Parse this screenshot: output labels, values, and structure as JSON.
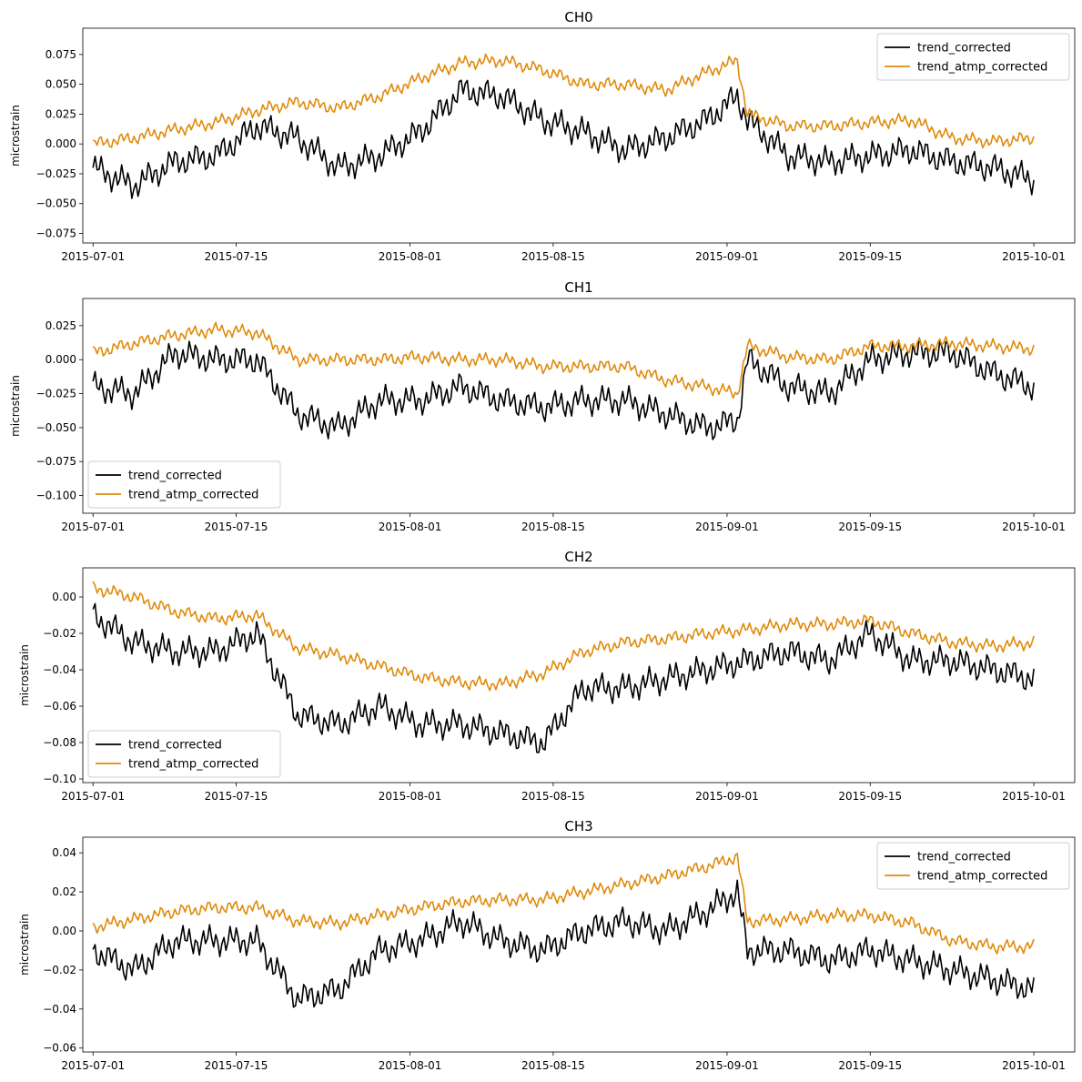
{
  "figure": {
    "background": "#ffffff"
  },
  "colors": {
    "trend_corrected": "#000000",
    "trend_atmp_corrected": "#e08a0b",
    "axes": "#000000"
  },
  "x_tick_labels": [
    "2015-07-01",
    "2015-07-15",
    "2015-08-01",
    "2015-08-15",
    "2015-09-01",
    "2015-09-15",
    "2015-10-01"
  ],
  "chart_data": [
    {
      "type": "line",
      "title": "CH0",
      "xlabel": "",
      "ylabel": "microstrain",
      "x_is_date": true,
      "xlim": [
        "2015-06-30",
        "2015-10-05"
      ],
      "ylim": [
        -0.083,
        0.097
      ],
      "yticks": [
        -0.075,
        -0.05,
        -0.025,
        0.0,
        0.025,
        0.05,
        0.075
      ],
      "ytick_labels": [
        "−0.075",
        "−0.050",
        "−0.025",
        "0.000",
        "0.025",
        "0.050",
        "0.075"
      ],
      "legend": {
        "position": "upper right",
        "entries": [
          "trend_corrected",
          "trend_atmp_corrected"
        ]
      },
      "series": [
        {
          "name": "trend_corrected",
          "color": "#000000",
          "x": [
            "2015-07-01",
            "2015-07-05",
            "2015-07-09",
            "2015-07-13",
            "2015-07-17",
            "2015-07-21",
            "2015-07-25",
            "2015-07-29",
            "2015-08-02",
            "2015-08-06",
            "2015-08-10",
            "2015-08-14",
            "2015-08-18",
            "2015-08-22",
            "2015-08-26",
            "2015-08-30",
            "2015-09-02",
            "2015-09-03",
            "2015-09-07",
            "2015-09-11",
            "2015-09-15",
            "2015-09-19",
            "2015-09-23",
            "2015-09-27",
            "2015-10-01"
          ],
          "y": [
            -0.02,
            -0.035,
            -0.015,
            -0.01,
            0.015,
            0.005,
            -0.02,
            -0.01,
            0.01,
            0.045,
            0.04,
            0.02,
            0.01,
            -0.005,
            0.005,
            0.02,
            0.04,
            0.02,
            -0.01,
            -0.015,
            -0.01,
            -0.005,
            -0.015,
            -0.02,
            -0.03
          ]
        },
        {
          "name": "trend_atmp_corrected",
          "color": "#e08a0b",
          "x": [
            "2015-07-01",
            "2015-07-05",
            "2015-07-09",
            "2015-07-13",
            "2015-07-17",
            "2015-07-21",
            "2015-07-25",
            "2015-07-29",
            "2015-08-02",
            "2015-08-06",
            "2015-08-10",
            "2015-08-14",
            "2015-08-18",
            "2015-08-22",
            "2015-08-26",
            "2015-08-30",
            "2015-09-02",
            "2015-09-03",
            "2015-09-07",
            "2015-09-11",
            "2015-09-15",
            "2015-09-19",
            "2015-09-23",
            "2015-09-27",
            "2015-10-01"
          ],
          "y": [
            0.0,
            0.005,
            0.012,
            0.018,
            0.028,
            0.035,
            0.03,
            0.04,
            0.055,
            0.068,
            0.07,
            0.062,
            0.05,
            0.05,
            0.045,
            0.06,
            0.07,
            0.025,
            0.015,
            0.015,
            0.018,
            0.02,
            0.005,
            0.002,
            0.005
          ]
        }
      ]
    },
    {
      "type": "line",
      "title": "CH1",
      "xlabel": "",
      "ylabel": "microstrain",
      "x_is_date": true,
      "xlim": [
        "2015-06-30",
        "2015-10-05"
      ],
      "ylim": [
        -0.113,
        0.045
      ],
      "yticks": [
        -0.1,
        -0.075,
        -0.05,
        -0.025,
        0.0,
        0.025
      ],
      "ytick_labels": [
        "−0.100",
        "−0.075",
        "−0.050",
        "−0.025",
        "0.000",
        "0.025"
      ],
      "legend": {
        "position": "lower left",
        "entries": [
          "trend_corrected",
          "trend_atmp_corrected"
        ]
      },
      "series": [
        {
          "name": "trend_corrected",
          "color": "#000000",
          "x": [
            "2015-07-01",
            "2015-07-05",
            "2015-07-09",
            "2015-07-13",
            "2015-07-17",
            "2015-07-21",
            "2015-07-25",
            "2015-07-29",
            "2015-08-02",
            "2015-08-06",
            "2015-08-10",
            "2015-08-14",
            "2015-08-18",
            "2015-08-22",
            "2015-08-26",
            "2015-08-30",
            "2015-09-02",
            "2015-09-03",
            "2015-09-07",
            "2015-09-11",
            "2015-09-15",
            "2015-09-19",
            "2015-09-23",
            "2015-09-27",
            "2015-10-01"
          ],
          "y": [
            -0.02,
            -0.025,
            0.005,
            0.0,
            0.0,
            -0.04,
            -0.05,
            -0.03,
            -0.03,
            -0.02,
            -0.03,
            -0.035,
            -0.03,
            -0.03,
            -0.04,
            -0.05,
            -0.045,
            0.0,
            -0.02,
            -0.025,
            0.0,
            0.005,
            0.005,
            -0.01,
            -0.02
          ]
        },
        {
          "name": "trend_atmp_corrected",
          "color": "#e08a0b",
          "x": [
            "2015-07-01",
            "2015-07-05",
            "2015-07-09",
            "2015-07-13",
            "2015-07-17",
            "2015-07-21",
            "2015-07-25",
            "2015-07-29",
            "2015-08-02",
            "2015-08-06",
            "2015-08-10",
            "2015-08-14",
            "2015-08-18",
            "2015-08-22",
            "2015-08-26",
            "2015-08-30",
            "2015-09-02",
            "2015-09-03",
            "2015-09-07",
            "2015-09-11",
            "2015-09-15",
            "2015-09-19",
            "2015-09-23",
            "2015-09-27",
            "2015-10-01"
          ],
          "y": [
            0.005,
            0.012,
            0.018,
            0.022,
            0.02,
            0.0,
            0.0,
            0.0,
            0.002,
            0.0,
            0.0,
            -0.005,
            -0.005,
            -0.005,
            -0.015,
            -0.02,
            -0.025,
            0.01,
            0.002,
            0.0,
            0.01,
            0.01,
            0.012,
            0.01,
            0.008
          ]
        }
      ]
    },
    {
      "type": "line",
      "title": "CH2",
      "xlabel": "",
      "ylabel": "microstrain",
      "x_is_date": true,
      "xlim": [
        "2015-06-30",
        "2015-10-05"
      ],
      "ylim": [
        -0.102,
        0.016
      ],
      "yticks": [
        -0.1,
        -0.08,
        -0.06,
        -0.04,
        -0.02,
        0.0
      ],
      "ytick_labels": [
        "−0.10",
        "−0.08",
        "−0.06",
        "−0.04",
        "−0.02",
        "0.00"
      ],
      "legend": {
        "position": "lower left",
        "entries": [
          "trend_corrected",
          "trend_atmp_corrected"
        ]
      },
      "series": [
        {
          "name": "trend_corrected",
          "color": "#000000",
          "x": [
            "2015-07-01",
            "2015-07-05",
            "2015-07-09",
            "2015-07-13",
            "2015-07-17",
            "2015-07-21",
            "2015-07-25",
            "2015-07-29",
            "2015-08-02",
            "2015-08-06",
            "2015-08-10",
            "2015-08-14",
            "2015-08-18",
            "2015-08-22",
            "2015-08-26",
            "2015-08-30",
            "2015-09-03",
            "2015-09-07",
            "2015-09-11",
            "2015-09-15",
            "2015-09-19",
            "2015-09-23",
            "2015-09-27",
            "2015-10-01"
          ],
          "y": [
            -0.01,
            -0.025,
            -0.03,
            -0.03,
            -0.02,
            -0.065,
            -0.07,
            -0.06,
            -0.07,
            -0.07,
            -0.075,
            -0.08,
            -0.05,
            -0.05,
            -0.045,
            -0.04,
            -0.035,
            -0.03,
            -0.035,
            -0.02,
            -0.035,
            -0.035,
            -0.04,
            -0.045
          ]
        },
        {
          "name": "trend_atmp_corrected",
          "color": "#e08a0b",
          "x": [
            "2015-07-01",
            "2015-07-05",
            "2015-07-09",
            "2015-07-13",
            "2015-07-17",
            "2015-07-21",
            "2015-07-25",
            "2015-07-29",
            "2015-08-02",
            "2015-08-06",
            "2015-08-10",
            "2015-08-14",
            "2015-08-18",
            "2015-08-22",
            "2015-08-26",
            "2015-08-30",
            "2015-09-03",
            "2015-09-07",
            "2015-09-11",
            "2015-09-15",
            "2015-09-19",
            "2015-09-23",
            "2015-09-27",
            "2015-10-01"
          ],
          "y": [
            0.005,
            0.0,
            -0.008,
            -0.012,
            -0.01,
            -0.028,
            -0.032,
            -0.038,
            -0.044,
            -0.047,
            -0.048,
            -0.042,
            -0.03,
            -0.025,
            -0.023,
            -0.02,
            -0.018,
            -0.015,
            -0.015,
            -0.013,
            -0.02,
            -0.025,
            -0.027,
            -0.025
          ]
        }
      ]
    },
    {
      "type": "line",
      "title": "CH3",
      "xlabel": "",
      "ylabel": "microstrain",
      "x_is_date": true,
      "xlim": [
        "2015-06-30",
        "2015-10-05"
      ],
      "ylim": [
        -0.062,
        0.048
      ],
      "yticks": [
        -0.06,
        -0.04,
        -0.02,
        0.0,
        0.02,
        0.04
      ],
      "ytick_labels": [
        "−0.06",
        "−0.04",
        "−0.02",
        "0.00",
        "0.02",
        "0.04"
      ],
      "legend": {
        "position": "upper right",
        "entries": [
          "trend_corrected",
          "trend_atmp_corrected"
        ]
      },
      "series": [
        {
          "name": "trend_corrected",
          "color": "#000000",
          "x": [
            "2015-07-01",
            "2015-07-05",
            "2015-07-09",
            "2015-07-13",
            "2015-07-17",
            "2015-07-21",
            "2015-07-25",
            "2015-07-29",
            "2015-08-02",
            "2015-08-06",
            "2015-08-10",
            "2015-08-14",
            "2015-08-18",
            "2015-08-22",
            "2015-08-26",
            "2015-08-30",
            "2015-09-02",
            "2015-09-03",
            "2015-09-07",
            "2015-09-11",
            "2015-09-15",
            "2015-09-19",
            "2015-09-23",
            "2015-09-27",
            "2015-10-01"
          ],
          "y": [
            -0.01,
            -0.02,
            -0.005,
            -0.005,
            -0.005,
            -0.035,
            -0.03,
            -0.01,
            -0.005,
            0.005,
            -0.005,
            -0.01,
            0.0,
            0.005,
            0.0,
            0.01,
            0.02,
            -0.01,
            -0.01,
            -0.015,
            -0.01,
            -0.015,
            -0.02,
            -0.025,
            -0.03
          ]
        },
        {
          "name": "trend_atmp_corrected",
          "color": "#e08a0b",
          "x": [
            "2015-07-01",
            "2015-07-05",
            "2015-07-09",
            "2015-07-13",
            "2015-07-17",
            "2015-07-21",
            "2015-07-25",
            "2015-07-29",
            "2015-08-02",
            "2015-08-06",
            "2015-08-10",
            "2015-08-14",
            "2015-08-18",
            "2015-08-22",
            "2015-08-26",
            "2015-08-30",
            "2015-09-02",
            "2015-09-03",
            "2015-09-07",
            "2015-09-11",
            "2015-09-15",
            "2015-09-19",
            "2015-09-23",
            "2015-09-27",
            "2015-10-01"
          ],
          "y": [
            0.002,
            0.006,
            0.01,
            0.012,
            0.012,
            0.005,
            0.004,
            0.008,
            0.012,
            0.015,
            0.016,
            0.016,
            0.02,
            0.024,
            0.028,
            0.033,
            0.038,
            0.005,
            0.006,
            0.008,
            0.008,
            0.004,
            -0.005,
            -0.008,
            -0.008
          ]
        }
      ]
    }
  ]
}
